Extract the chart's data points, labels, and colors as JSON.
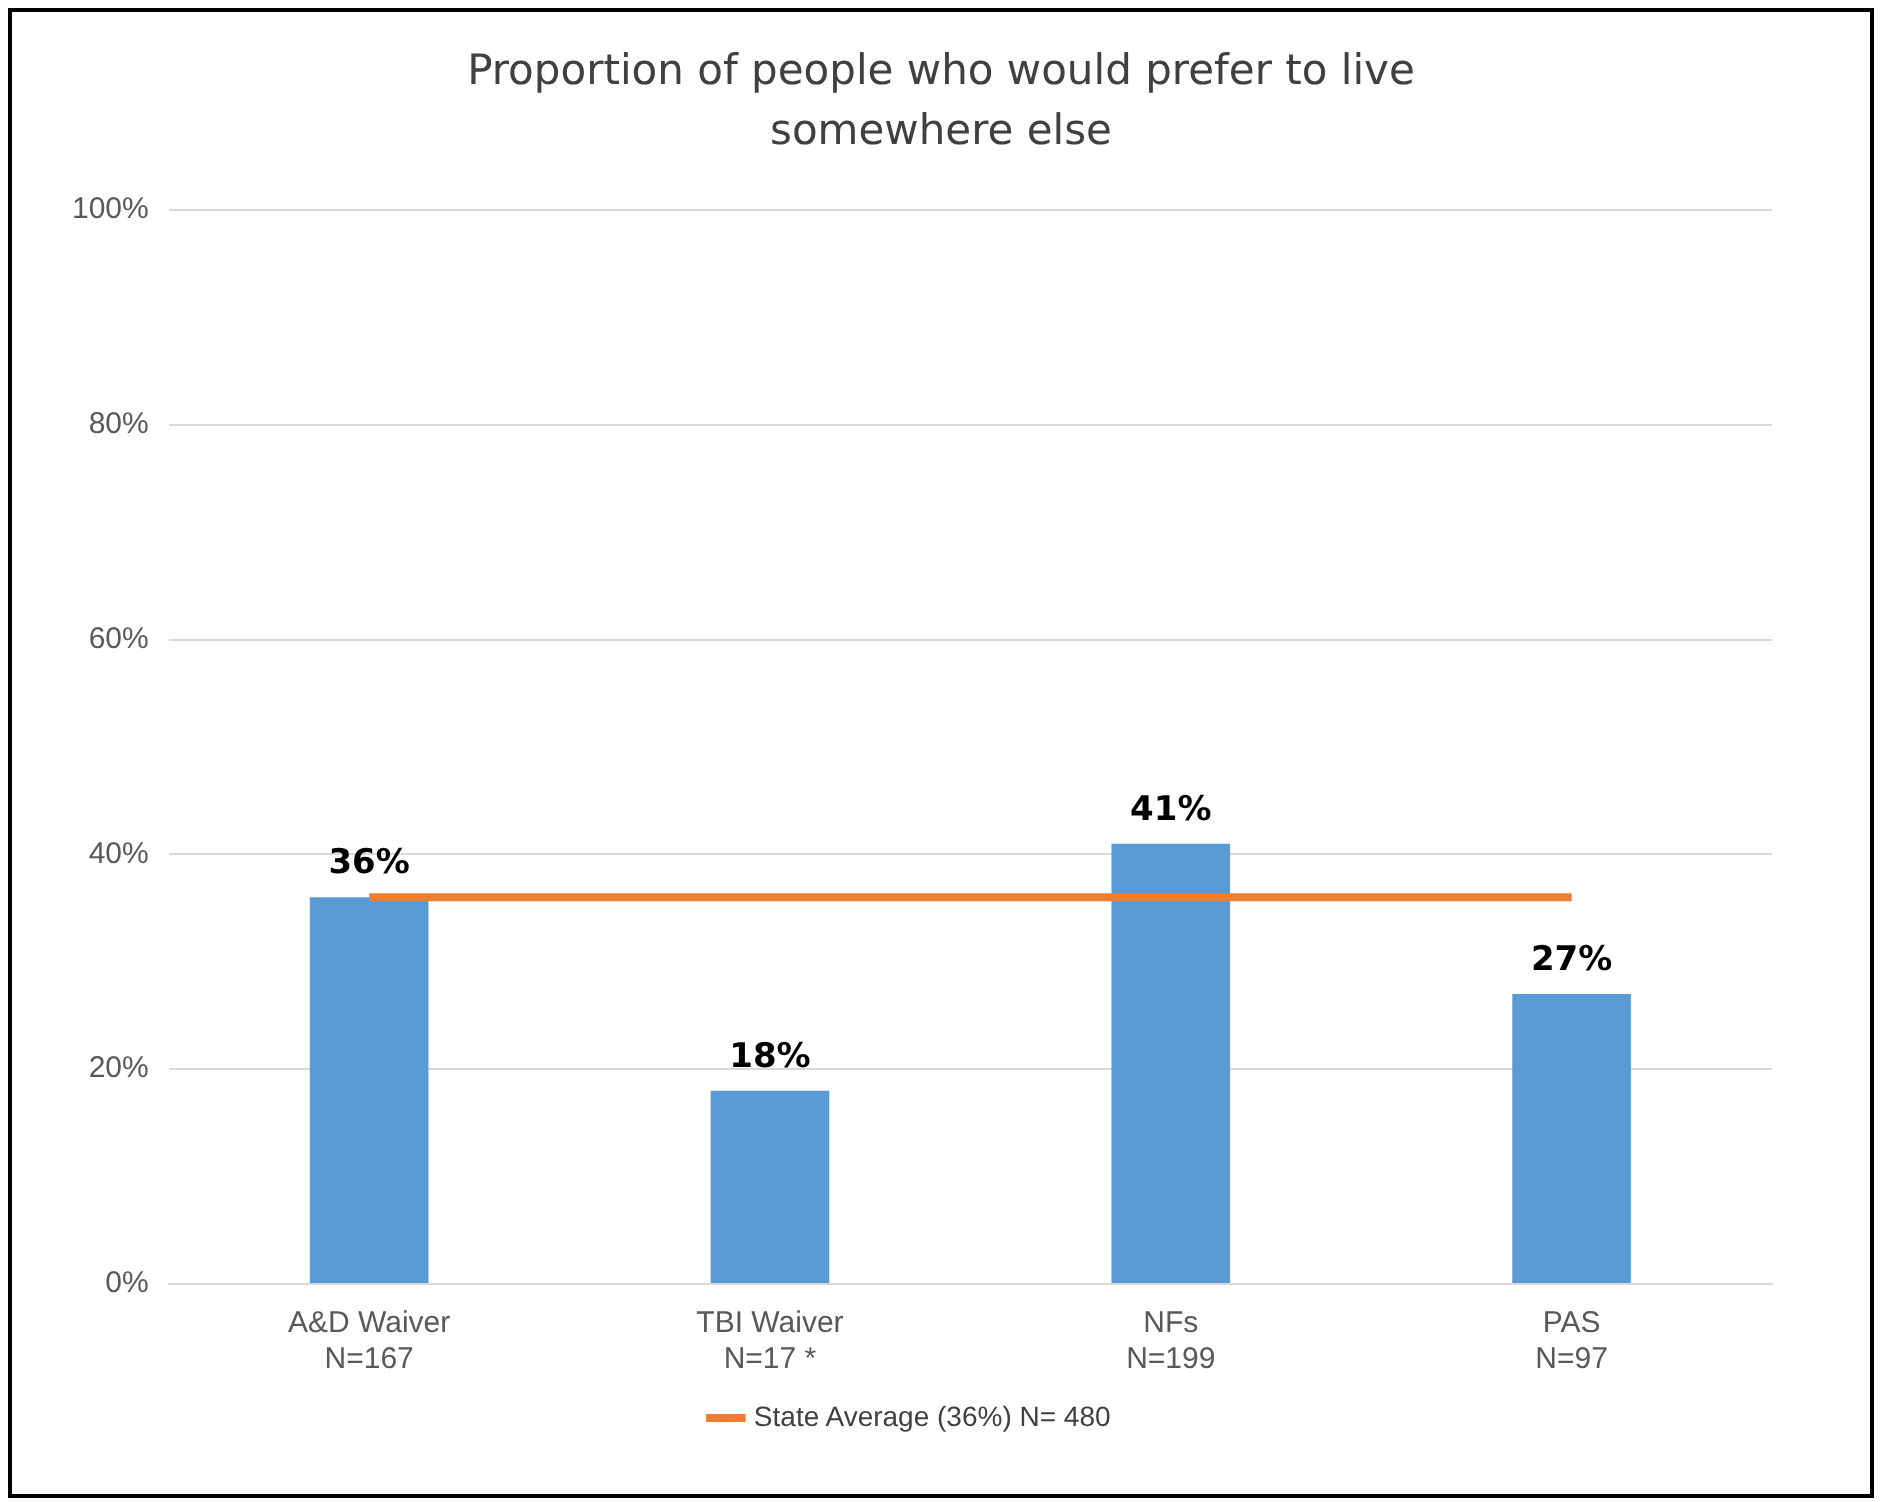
{
  "chart_data": {
    "type": "bar",
    "title": "Proportion of people who would prefer to live somewhere else",
    "categories": [
      "A&D Waiver\nN=167",
      "TBI Waiver\nN=17 *",
      "NFs\nN=199",
      "PAS\nN=97"
    ],
    "series": [
      {
        "color": "#5b9bd5",
        "values": [
          36,
          18,
          41,
          27
        ],
        "value_labels": [
          "36%",
          "18%",
          "41%",
          "27%"
        ]
      },
      {
        "type": "line",
        "name": "State Average (36%) N= 480",
        "color": "#ed7d31",
        "values": [
          36,
          36,
          36,
          36
        ]
      }
    ],
    "ylim": [
      0,
      100
    ],
    "yticks": [
      {
        "value": 0,
        "label": "0%"
      },
      {
        "value": 20,
        "label": "20%"
      },
      {
        "value": 40,
        "label": "40%"
      },
      {
        "value": 60,
        "label": "60%"
      },
      {
        "value": 80,
        "label": "80%"
      },
      {
        "value": 100,
        "label": "100%"
      }
    ],
    "grid": "y",
    "legend": "bottom",
    "marker": "none"
  }
}
